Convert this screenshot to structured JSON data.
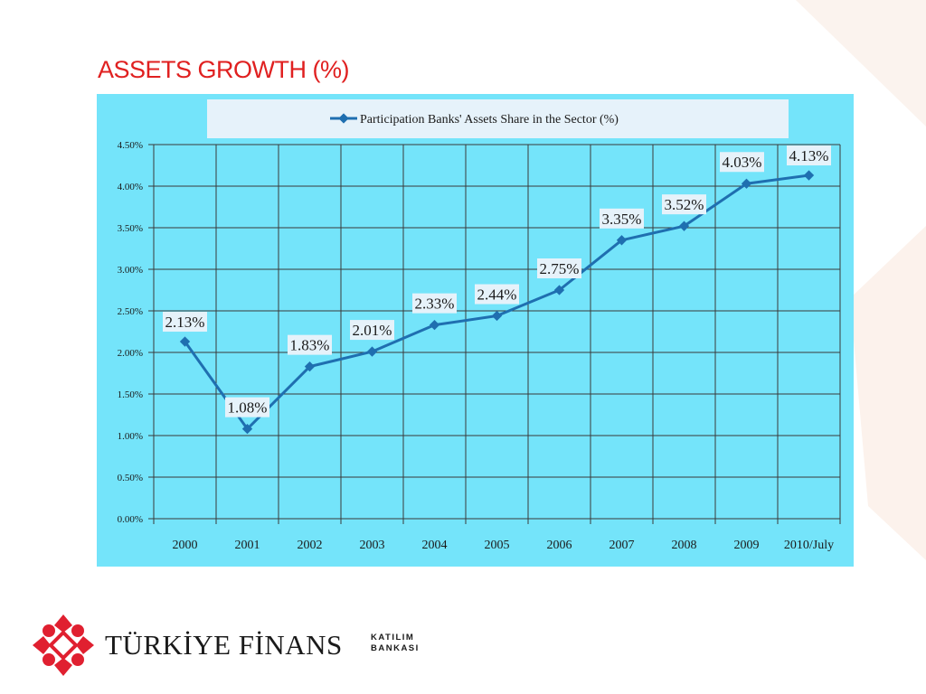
{
  "slide": {
    "title": "ASSETS GROWTH (%)"
  },
  "logo": {
    "name": "TÜRKİYE FİNANS",
    "sub_line1": "KATILIM",
    "sub_line2": "BANKASI",
    "brand_color": "#e02030"
  },
  "chart_data": {
    "type": "line",
    "title": "",
    "xlabel": "",
    "ylabel": "",
    "categories": [
      "2000",
      "2001",
      "2002",
      "2003",
      "2004",
      "2005",
      "2006",
      "2007",
      "2008",
      "2009",
      "2010/July"
    ],
    "series": [
      {
        "name": "Participation Banks' Assets Share in the Sector (%)",
        "values": [
          2.13,
          1.08,
          1.83,
          2.01,
          2.33,
          2.44,
          2.75,
          3.35,
          3.52,
          4.03,
          4.13
        ],
        "labels": [
          "2.13%",
          "1.08%",
          "1.83%",
          "2.01%",
          "2.33%",
          "2.44%",
          "2.75%",
          "3.35%",
          "3.52%",
          "4.03%",
          "4.13%"
        ],
        "color": "#1f6fb0"
      }
    ],
    "ylim": [
      0,
      4.5
    ],
    "yticks": [
      0,
      0.5,
      1.0,
      1.5,
      2.0,
      2.5,
      3.0,
      3.5,
      4.0,
      4.5
    ],
    "ytick_labels": [
      "0.00%",
      "0.50%",
      "1.00%",
      "1.50%",
      "2.00%",
      "2.50%",
      "3.00%",
      "3.50%",
      "4.00%",
      "4.50%"
    ],
    "grid": true,
    "legend_position": "top",
    "background_color": "#74e4fa"
  }
}
